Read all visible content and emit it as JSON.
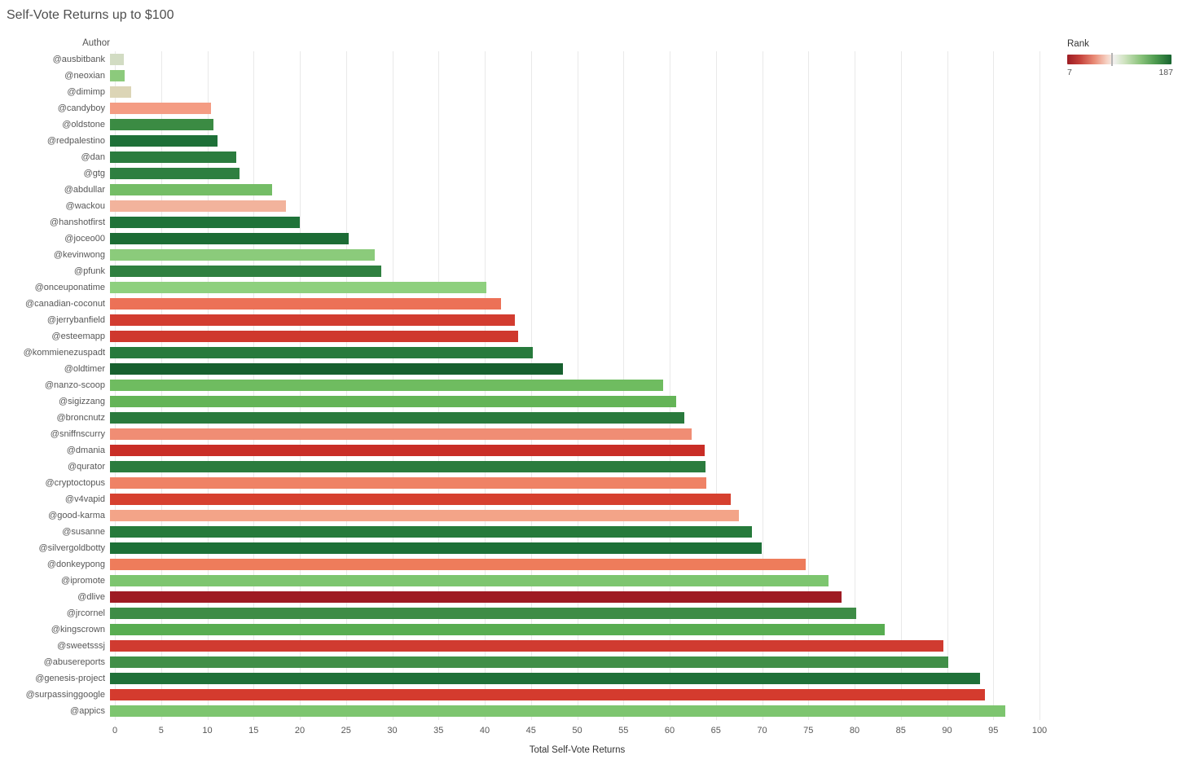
{
  "title": "Self-Vote Returns up to $100",
  "y_axis_header": "Author",
  "legend": {
    "title": "Rank",
    "min_label": "7",
    "max_label": "187"
  },
  "chart_data": {
    "type": "bar",
    "orientation": "horizontal",
    "title": "Self-Vote Returns up to $100",
    "xlabel": "Total Self-Vote Returns",
    "ylabel": "Author",
    "xlim": [
      0,
      100
    ],
    "x_ticks": [
      0,
      5,
      10,
      15,
      20,
      25,
      30,
      35,
      40,
      45,
      50,
      55,
      60,
      65,
      70,
      75,
      80,
      85,
      90,
      95,
      100
    ],
    "grid": true,
    "legend": {
      "title": "Rank",
      "min": 7,
      "max": 187,
      "colorscale": "red-white-green diverging"
    },
    "categories": [
      "@ausbitbank",
      "@neoxian",
      "@dimimp",
      "@candyboy",
      "@oldstone",
      "@redpalestino",
      "@dan",
      "@gtg",
      "@abdullar",
      "@wackou",
      "@hanshotfirst",
      "@joceo00",
      "@kevinwong",
      "@pfunk",
      "@onceuponatime",
      "@canadian-coconut",
      "@jerrybanfield",
      "@esteemapp",
      "@kommienezuspadt",
      "@oldtimer",
      "@nanzo-scoop",
      "@sigizzang",
      "@broncnutz",
      "@sniffnscurry",
      "@dmania",
      "@qurator",
      "@cryptoctopus",
      "@v4vapid",
      "@good-karma",
      "@susanne",
      "@silvergoldbotty",
      "@donkeypong",
      "@ipromote",
      "@dlive",
      "@jrcornel",
      "@kingscrown",
      "@sweetsssj",
      "@abusereports",
      "@genesis-project",
      "@surpassinggoogle",
      "@appics"
    ],
    "values": [
      1.5,
      1.6,
      2.3,
      10.9,
      11.2,
      11.6,
      13.7,
      14.0,
      17.5,
      19.0,
      20.5,
      25.8,
      28.6,
      29.3,
      40.7,
      42.3,
      43.8,
      44.1,
      45.7,
      49.0,
      59.8,
      61.2,
      62.1,
      62.9,
      64.3,
      64.4,
      64.5,
      67.1,
      68.0,
      69.4,
      70.5,
      75.2,
      77.7,
      79.1,
      80.7,
      83.8,
      90.1,
      90.7,
      94.1,
      94.6,
      96.8
    ],
    "colors": [
      "#d2dcc3",
      "#8cca7c",
      "#dcd5b6",
      "#f49c83",
      "#3b8b43",
      "#1e7038",
      "#2b7c3e",
      "#2e7f40",
      "#74bd66",
      "#f2b39c",
      "#1f7339",
      "#1c6c35",
      "#8bcb7b",
      "#2f8040",
      "#8ed07e",
      "#ec7157",
      "#d23c30",
      "#cf382d",
      "#277a3c",
      "#17602f",
      "#6fbc60",
      "#64b457",
      "#2a7a3d",
      "#f08d74",
      "#c92d26",
      "#2b7c3e",
      "#ef8265",
      "#d6402f",
      "#f3a488",
      "#267a3b",
      "#1d7037",
      "#ee7c5b",
      "#7dc56f",
      "#9e1b23",
      "#3e8c46",
      "#58ad51",
      "#d03b30",
      "#418f48",
      "#207139",
      "#d43b2e",
      "#7dc56f"
    ]
  }
}
